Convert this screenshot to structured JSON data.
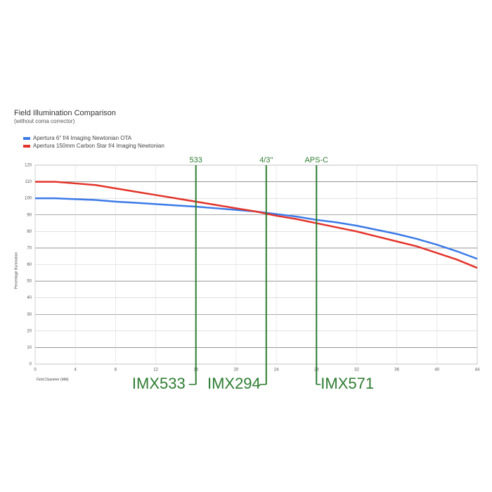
{
  "chart_data": {
    "type": "line",
    "title": "Field Illumination Comparison",
    "subtitle": "(without coma corrector)",
    "x_label": "Field Diameter (MM)",
    "y_label": "Percentage Illumination",
    "x": [
      0,
      2,
      4,
      6,
      8,
      10,
      12,
      14,
      16,
      18,
      20,
      22,
      24,
      26,
      28,
      30,
      32,
      34,
      36,
      38,
      40,
      42,
      44
    ],
    "series": [
      {
        "name": "Apertura 6\" f/4 Imaging Newtonian OTA",
        "color": "#3b7ae8",
        "values": [
          100,
          100,
          99.5,
          99,
          98,
          97.3,
          96.5,
          95.7,
          95,
          94,
          93,
          92,
          90.5,
          89,
          87,
          85.5,
          83.5,
          81,
          78.5,
          75.5,
          72,
          68,
          63.5
        ]
      },
      {
        "name": "Apertura 150mm Carbon Star f/4 Imaging Newtonian",
        "color": "#e3342a",
        "values": [
          110,
          110,
          109,
          108,
          106,
          104,
          102,
          100,
          98,
          96,
          94,
          92,
          89.5,
          87.5,
          85,
          82.5,
          80,
          77,
          74,
          71,
          67,
          63,
          58
        ]
      }
    ],
    "xlim": [
      0,
      44
    ],
    "xticks": [
      0,
      4,
      8,
      12,
      16,
      20,
      24,
      28,
      32,
      36,
      40,
      44
    ],
    "ylim": [
      0,
      120
    ],
    "yticks": [
      0,
      10,
      20,
      30,
      40,
      50,
      60,
      70,
      80,
      90,
      100,
      110,
      120
    ],
    "grid": true,
    "markers": [
      {
        "x": 16,
        "label": "533",
        "sensor": "IMX533"
      },
      {
        "x": 23,
        "label": "4/3\"",
        "sensor": "IMX294"
      },
      {
        "x": 28,
        "label": "APS-C",
        "sensor": "IMX571"
      }
    ],
    "marker_color": "#2e7d32"
  }
}
